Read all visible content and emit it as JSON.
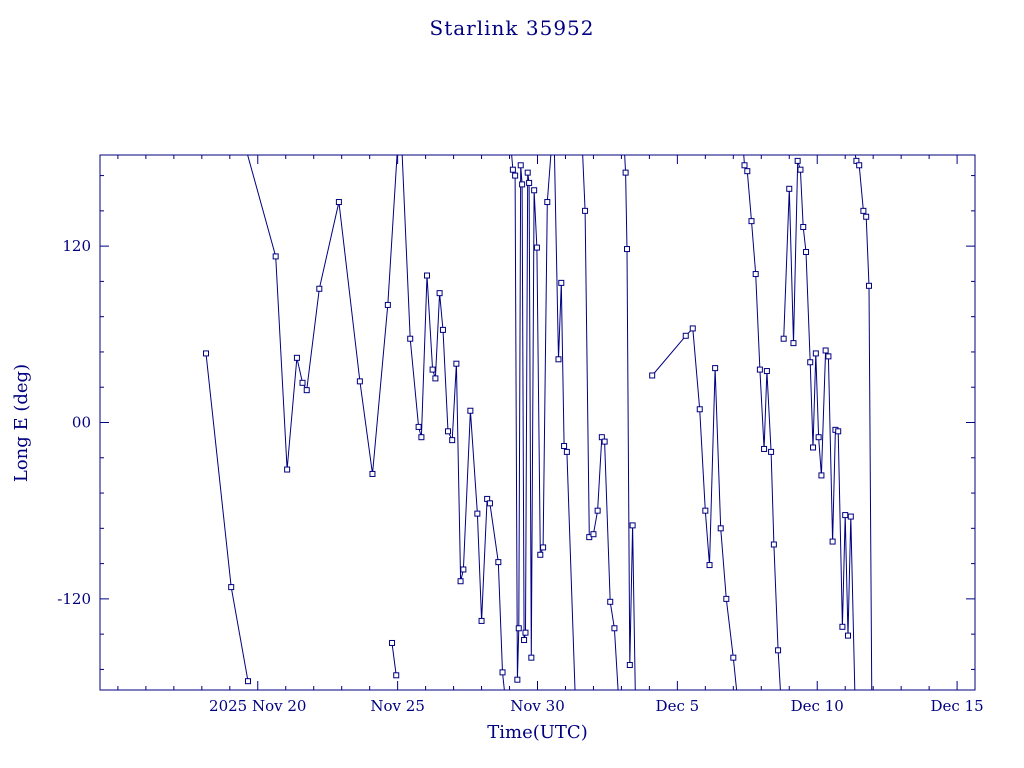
{
  "title": "Starlink 35952",
  "colors": {
    "accent": "#000080",
    "background": "#ffffff"
  },
  "chart_data": {
    "type": "line",
    "title": "Starlink 35952",
    "xlabel": "Time(UTC)",
    "ylabel": "Long E (deg)",
    "x_axis_unit": "days since 2025 Nov 20 00:00 UTC",
    "xlim_days_from_nov20": [
      -5.64,
      25.64
    ],
    "ylim": [
      -182,
      182
    ],
    "x_major_ticks": [
      {
        "t": 0,
        "label": "2025 Nov 20"
      },
      {
        "t": 5,
        "label": "Nov 25"
      },
      {
        "t": 10,
        "label": "Nov 30"
      },
      {
        "t": 15,
        "label": "Dec 5"
      },
      {
        "t": 20,
        "label": "Dec 10"
      },
      {
        "t": 25,
        "label": "Dec 15"
      }
    ],
    "x_minor_step": 1,
    "y_major_ticks": [
      {
        "v": 120,
        "label": "120"
      },
      {
        "v": 0,
        "label": "00"
      },
      {
        "v": -120,
        "label": "-120"
      }
    ],
    "y_minor_step": 24,
    "marker": "open-square",
    "grid": false,
    "legend": "none",
    "segments": [
      [
        [
          -1.85,
          47
        ],
        [
          -0.95,
          -112
        ],
        [
          -0.35,
          -176
        ]
      ],
      [
        [
          -0.45,
          188
        ],
        [
          0.64,
          113
        ],
        [
          1.05,
          -32
        ],
        [
          1.4,
          44
        ],
        [
          1.6,
          27
        ],
        [
          1.75,
          22
        ],
        [
          2.2,
          91
        ],
        [
          2.9,
          150
        ],
        [
          3.65,
          28
        ],
        [
          4.1,
          -35
        ],
        [
          4.65,
          80
        ],
        [
          5.0,
          188
        ]
      ],
      [
        [
          4.8,
          -150
        ],
        [
          4.95,
          -172
        ]
      ],
      [
        [
          5.15,
          188
        ],
        [
          5.45,
          57
        ],
        [
          5.75,
          -3
        ],
        [
          5.85,
          -10
        ],
        [
          6.05,
          100
        ],
        [
          6.25,
          36
        ],
        [
          6.35,
          30
        ],
        [
          6.5,
          88
        ],
        [
          6.62,
          63
        ],
        [
          6.8,
          -6
        ],
        [
          6.95,
          -12
        ],
        [
          7.1,
          40
        ],
        [
          7.25,
          -108
        ],
        [
          7.35,
          -100
        ],
        [
          7.6,
          8
        ],
        [
          7.85,
          -62
        ],
        [
          8.0,
          -135
        ],
        [
          8.2,
          -52
        ],
        [
          8.3,
          -55
        ],
        [
          8.6,
          -95
        ],
        [
          8.75,
          -170
        ],
        [
          8.85,
          -188
        ]
      ],
      [
        [
          9.05,
          188
        ],
        [
          9.12,
          172
        ],
        [
          9.2,
          168
        ],
        [
          9.28,
          -175
        ],
        [
          9.33,
          -140
        ],
        [
          9.4,
          175
        ],
        [
          9.45,
          162
        ],
        [
          9.52,
          -148
        ],
        [
          9.57,
          -143
        ],
        [
          9.65,
          170
        ],
        [
          9.7,
          163
        ],
        [
          9.78,
          -160
        ],
        [
          9.88,
          158
        ],
        [
          9.98,
          119
        ],
        [
          10.1,
          -90
        ],
        [
          10.2,
          -85
        ],
        [
          10.35,
          150
        ],
        [
          10.5,
          188
        ]
      ],
      [
        [
          10.6,
          188
        ],
        [
          10.75,
          43
        ],
        [
          10.85,
          95
        ],
        [
          10.95,
          -16
        ],
        [
          11.05,
          -20
        ],
        [
          11.35,
          -188
        ]
      ],
      [
        [
          11.6,
          188
        ],
        [
          11.7,
          144
        ],
        [
          11.85,
          -78
        ],
        [
          12.0,
          -76
        ],
        [
          12.15,
          -60
        ],
        [
          12.3,
          -10
        ],
        [
          12.4,
          -13
        ],
        [
          12.6,
          -122
        ],
        [
          12.75,
          -140
        ],
        [
          12.9,
          -188
        ]
      ],
      [
        [
          13.1,
          188
        ],
        [
          13.15,
          170
        ],
        [
          13.2,
          118
        ],
        [
          13.3,
          -165
        ],
        [
          13.4,
          -70
        ],
        [
          13.5,
          -188
        ]
      ],
      [
        [
          14.1,
          32
        ],
        [
          15.3,
          59
        ],
        [
          15.55,
          64
        ],
        [
          15.8,
          9
        ],
        [
          16.0,
          -60
        ],
        [
          16.15,
          -97
        ],
        [
          16.35,
          37
        ],
        [
          16.55,
          -72
        ],
        [
          16.75,
          -120
        ],
        [
          17.0,
          -160
        ],
        [
          17.15,
          -188
        ]
      ],
      [
        [
          17.35,
          188
        ],
        [
          17.4,
          175
        ],
        [
          17.5,
          171
        ],
        [
          17.65,
          137
        ],
        [
          17.8,
          101
        ],
        [
          17.95,
          36
        ],
        [
          18.1,
          -18
        ],
        [
          18.2,
          35
        ],
        [
          18.35,
          -20
        ],
        [
          18.45,
          -83
        ],
        [
          18.6,
          -155
        ],
        [
          18.7,
          -188
        ]
      ],
      [
        [
          18.8,
          57
        ],
        [
          19.0,
          159
        ],
        [
          19.15,
          54
        ],
        [
          19.3,
          178
        ],
        [
          19.4,
          172
        ],
        [
          19.5,
          133
        ],
        [
          19.6,
          116
        ],
        [
          19.75,
          41
        ],
        [
          19.85,
          -17
        ],
        [
          19.95,
          47
        ],
        [
          20.05,
          -10
        ],
        [
          20.15,
          -36
        ],
        [
          20.3,
          49
        ],
        [
          20.4,
          45
        ],
        [
          20.55,
          -81
        ],
        [
          20.65,
          -5
        ],
        [
          20.75,
          -6
        ],
        [
          20.9,
          -139
        ],
        [
          21.0,
          -63
        ],
        [
          21.1,
          -145
        ],
        [
          21.2,
          -64
        ],
        [
          21.35,
          -188
        ]
      ],
      [
        [
          21.3,
          188
        ],
        [
          21.4,
          178
        ],
        [
          21.5,
          175
        ],
        [
          21.65,
          144
        ],
        [
          21.75,
          140
        ],
        [
          21.85,
          93
        ],
        [
          21.95,
          -188
        ]
      ]
    ]
  }
}
